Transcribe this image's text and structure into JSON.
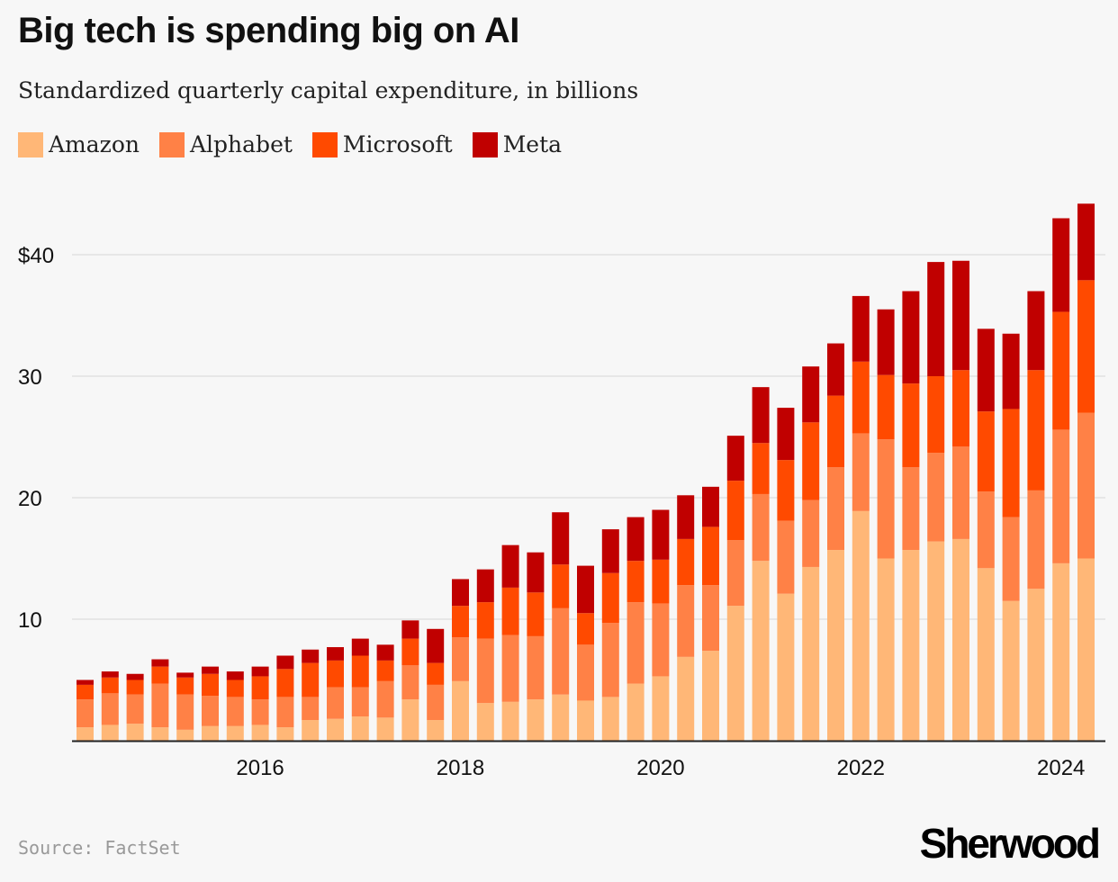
{
  "title": "Big tech is spending big on AI",
  "subtitle": "Standardized quarterly capital expenditure, in billions",
  "source": "Source: FactSet",
  "brand": "Sherwood",
  "chart_data": {
    "type": "bar",
    "stacked": true,
    "x_start": "2014 Q2",
    "x_tick_labels": [
      "2016",
      "2018",
      "2020",
      "2022",
      "2024"
    ],
    "y_tick_labels": [
      "10",
      "20",
      "30",
      "$40"
    ],
    "y_ticks": [
      10,
      20,
      30,
      40
    ],
    "ylim": [
      0,
      45
    ],
    "grid": true,
    "legend_position": "top-left",
    "series": [
      {
        "name": "Amazon",
        "color": "#ffb777",
        "values": [
          1.1,
          1.3,
          1.4,
          1.1,
          0.9,
          1.2,
          1.2,
          1.3,
          1.1,
          1.7,
          1.8,
          2.0,
          1.9,
          3.4,
          1.7,
          4.9,
          3.1,
          3.2,
          3.4,
          3.8,
          3.3,
          3.6,
          4.7,
          5.3,
          6.9,
          7.4,
          11.1,
          14.8,
          12.1,
          14.3,
          15.7,
          18.9,
          15.0,
          15.7,
          16.4,
          16.6,
          14.2,
          11.5,
          12.5,
          14.6,
          15.0
        ]
      },
      {
        "name": "Alphabet",
        "color": "#ff8146",
        "values": [
          2.3,
          2.6,
          2.4,
          3.6,
          2.9,
          2.5,
          2.4,
          2.1,
          2.5,
          1.9,
          2.6,
          2.4,
          3.0,
          2.8,
          2.9,
          3.6,
          5.3,
          5.5,
          5.2,
          7.1,
          4.6,
          6.1,
          6.7,
          6.0,
          5.9,
          5.4,
          5.4,
          5.5,
          6.0,
          5.5,
          6.8,
          6.4,
          9.8,
          6.8,
          7.3,
          7.6,
          6.3,
          6.9,
          8.1,
          11.0,
          12.0
        ]
      },
      {
        "name": "Microsoft",
        "color": "#ff4a00",
        "values": [
          1.2,
          1.3,
          1.2,
          1.4,
          1.4,
          1.8,
          1.4,
          1.9,
          2.3,
          2.8,
          2.2,
          2.6,
          1.7,
          2.2,
          1.8,
          2.6,
          3.0,
          3.9,
          3.6,
          3.6,
          2.6,
          4.1,
          3.4,
          3.6,
          3.8,
          4.8,
          4.9,
          4.2,
          5.0,
          6.4,
          5.9,
          5.9,
          5.3,
          6.9,
          6.3,
          6.3,
          6.6,
          8.9,
          9.9,
          9.7,
          10.9
        ]
      },
      {
        "name": "Meta",
        "color": "#c00000",
        "values": [
          0.4,
          0.5,
          0.5,
          0.6,
          0.4,
          0.6,
          0.7,
          0.8,
          1.1,
          1.1,
          1.1,
          1.4,
          1.3,
          1.5,
          2.8,
          2.2,
          2.7,
          3.5,
          3.3,
          4.3,
          3.9,
          3.6,
          3.6,
          4.1,
          3.6,
          3.3,
          3.7,
          4.6,
          4.3,
          4.6,
          4.3,
          5.4,
          5.4,
          7.6,
          9.4,
          9.0,
          6.8,
          6.2,
          6.5,
          7.7,
          6.3
        ]
      }
    ]
  }
}
